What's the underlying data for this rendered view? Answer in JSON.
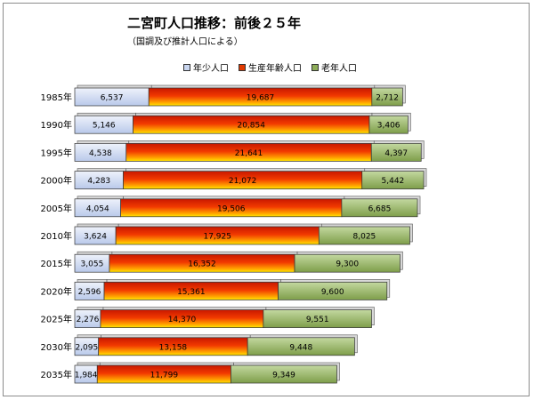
{
  "chart_data": {
    "type": "bar",
    "orientation": "horizontal",
    "stacked": true,
    "title": "二宮町人口推移：前後２５年",
    "subtitle": "（国調及び推計人口による）",
    "categories": [
      "1985年",
      "1990年",
      "1995年",
      "2000年",
      "2005年",
      "2010年",
      "2015年",
      "2020年",
      "2025年",
      "2030年",
      "2035年"
    ],
    "series": [
      {
        "name": "年少人口",
        "values": [
          6537,
          5146,
          4538,
          4283,
          4054,
          3624,
          3055,
          2596,
          2276,
          2095,
          1984
        ],
        "color": "#c9d6f0"
      },
      {
        "name": "生産年齢人口",
        "values": [
          19687,
          20854,
          21641,
          21072,
          19506,
          17925,
          16352,
          15361,
          14370,
          13158,
          11799
        ],
        "color": "#e23a00"
      },
      {
        "name": "老年人口",
        "values": [
          2712,
          3406,
          4397,
          5442,
          6685,
          8025,
          9300,
          9600,
          9551,
          9448,
          9349
        ],
        "color": "#8fae5a"
      }
    ],
    "value_labels": [
      [
        "6,537",
        "5,146",
        "4,538",
        "4,283",
        "4,054",
        "3,624",
        "3,055",
        "2,596",
        "2,276",
        "2,095",
        "1,984"
      ],
      [
        "19,687",
        "20,854",
        "21,641",
        "21,072",
        "19,506",
        "17,925",
        "16,352",
        "15,361",
        "14,370",
        "13,158",
        "11,799"
      ],
      [
        "2,712",
        "3,406",
        "4,397",
        "5,442",
        "6,685",
        "8,025",
        "9,300",
        "9,600",
        "9,551",
        "9,448",
        "9,349"
      ]
    ],
    "legend_position": "top",
    "grid": false
  }
}
